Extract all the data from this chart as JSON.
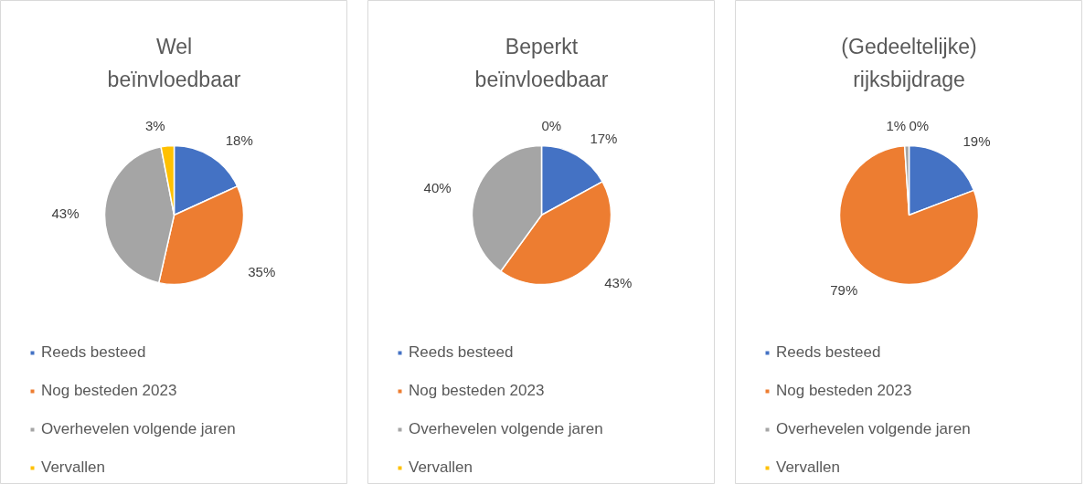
{
  "chart_data": [
    {
      "type": "pie",
      "title": "Wel beïnvloedbaar",
      "categories": [
        "Reeds besteed",
        "Nog besteden 2023",
        "Overhevelen volgende jaren",
        "Vervallen"
      ],
      "values": [
        18,
        35,
        43,
        3
      ],
      "colors": [
        "#4472c4",
        "#ed7d31",
        "#a5a5a5",
        "#ffc000"
      ],
      "value_labels": [
        "18%",
        "35%",
        "43%",
        "3%"
      ],
      "legend": "bottom"
    },
    {
      "type": "pie",
      "title": "Beperkt beïnvloedbaar",
      "categories": [
        "Reeds besteed",
        "Nog besteden 2023",
        "Overhevelen volgende jaren",
        "Vervallen"
      ],
      "values": [
        17,
        43,
        40,
        0
      ],
      "colors": [
        "#4472c4",
        "#ed7d31",
        "#a5a5a5",
        "#ffc000"
      ],
      "value_labels": [
        "17%",
        "43%",
        "40%",
        "0%"
      ],
      "legend": "bottom"
    },
    {
      "type": "pie",
      "title": "(Gedeeltelijke) rijksbijdrage",
      "categories": [
        "Reeds besteed",
        "Nog besteden 2023",
        "Overhevelen volgende jaren",
        "Vervallen"
      ],
      "values": [
        19,
        79,
        1,
        0
      ],
      "colors": [
        "#4472c4",
        "#ed7d31",
        "#a5a5a5",
        "#ffc000"
      ],
      "value_labels": [
        "19%",
        "79%",
        "1%",
        "0%"
      ],
      "legend": "bottom"
    }
  ]
}
